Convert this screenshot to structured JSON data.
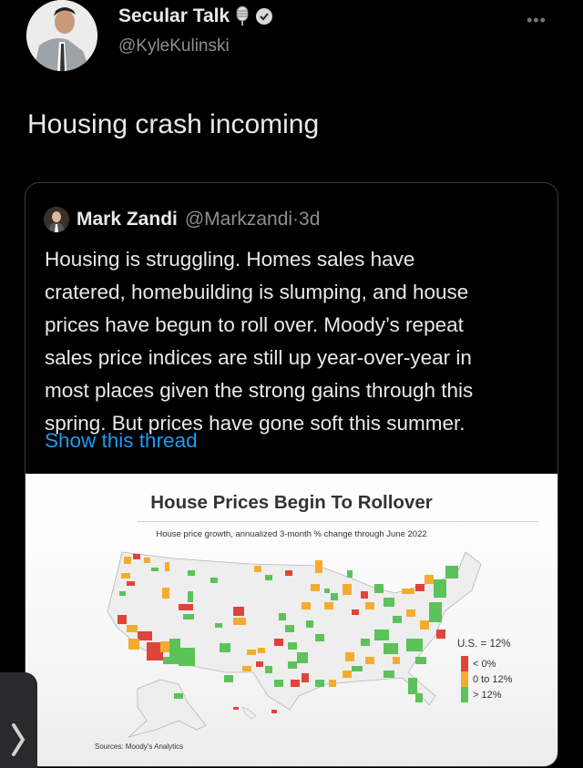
{
  "author": {
    "name": "Secular Talk",
    "handle": "@KyleKulinski",
    "name_icons": [
      "microphone-emoji",
      "verified-badge-icon"
    ]
  },
  "more_label": "•••",
  "tweet_text": "Housing crash incoming",
  "quoted": {
    "name": "Mark Zandi",
    "handle": "@Markzandi",
    "separator": "·",
    "time": "3d",
    "lines": [
      "Housing is struggling. Homes sales have",
      "cratered, homebuilding is slumping, and house",
      "prices have begun to roll over. Moody’s repeat",
      "sales price indices are still up year-over-year in",
      "most places given the strong gains through this",
      "spring. But prices have gone soft this summer."
    ],
    "show_thread": "Show this thread",
    "link_color": "#1d9bf0"
  },
  "map_image": {
    "title": "House Prices Begin To Rollover",
    "subtitle": "House price growth, annualized 3-month % change through June 2022",
    "us_value": "U.S. = 12%",
    "legend": [
      {
        "label": "< 0%",
        "color": "#e0433a"
      },
      {
        "label": "0 to 12%",
        "color": "#f5ac2d"
      },
      {
        "label": "> 12%",
        "color": "#5cc25a"
      }
    ],
    "source": "Sources: Moody's Analytics"
  },
  "overlay": {
    "icon": "chevron-right-icon",
    "label": "❯"
  }
}
